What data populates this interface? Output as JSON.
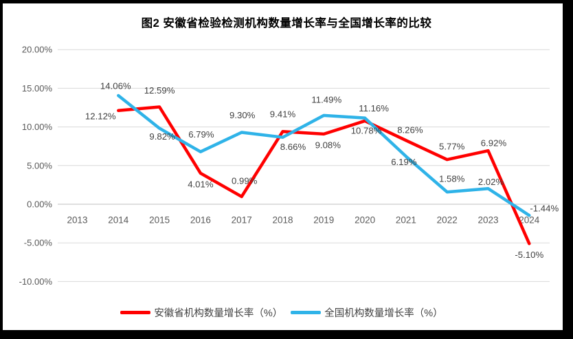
{
  "frame": {
    "border_color": "#000000",
    "background": "#ffffff"
  },
  "chart_data": {
    "type": "line",
    "title": "图2 安徽省检验检测机构数量增长率与全国增长率的比较",
    "categories": [
      "2013",
      "2014",
      "2015",
      "2016",
      "2017",
      "2018",
      "2019",
      "2020",
      "2021",
      "2022",
      "2023",
      "2024"
    ],
    "series": [
      {
        "id": "anhui",
        "name": "安徽省机构数量增长率（%）",
        "color": "#ff0000",
        "values": [
          null,
          12.12,
          12.59,
          4.01,
          0.99,
          9.41,
          9.08,
          10.78,
          8.26,
          5.77,
          6.92,
          -5.1
        ],
        "labels": [
          "",
          "12.12%",
          "12.59%",
          "4.01%",
          "0.99%",
          "9.41%",
          "9.08%",
          "10.78%",
          "8.26%",
          "5.77%",
          "6.92%",
          "-5.10%"
        ],
        "label_offsets": [
          null,
          [
            -26,
            8
          ],
          [
            0,
            -24
          ],
          [
            0,
            16
          ],
          [
            4,
            -23
          ],
          [
            0,
            -25
          ],
          [
            6,
            16
          ],
          [
            2,
            14
          ],
          [
            6,
            -15
          ],
          [
            7,
            -19
          ],
          [
            8,
            -11
          ],
          [
            0,
            16
          ]
        ]
      },
      {
        "id": "national",
        "name": "全国机构数量增长率（%）",
        "color": "#2fb3e8",
        "values": [
          null,
          14.06,
          9.82,
          6.79,
          9.3,
          8.66,
          11.49,
          11.16,
          6.19,
          1.58,
          2.02,
          -1.44
        ],
        "labels": [
          "",
          "14.06%",
          "9.82%",
          "6.79%",
          "9.30%",
          "8.66%",
          "11.49%",
          "11.16%",
          "6.19%",
          "1.58%",
          "2.02%",
          "-1.44%"
        ],
        "label_offsets": [
          null,
          [
            -4,
            -14
          ],
          [
            4,
            12
          ],
          [
            1,
            -25
          ],
          [
            1,
            -25
          ],
          [
            15,
            14
          ],
          [
            4,
            -23
          ],
          [
            13,
            -14
          ],
          [
            -3,
            8
          ],
          [
            7,
            -19
          ],
          [
            4,
            -10
          ],
          [
            22,
            -10
          ]
        ]
      }
    ],
    "y_axis": {
      "ticks": [
        "20.00%",
        "15.00%",
        "10.00%",
        "5.00%",
        "0.00%",
        "-5.00%",
        "-10.00%"
      ],
      "tick_values": [
        20,
        15,
        10,
        5,
        0,
        -5,
        -10
      ],
      "min": -10,
      "max": 20,
      "unit": "%"
    },
    "grid": true,
    "legend_position": "bottom",
    "data_labels": true,
    "colors": {
      "gridline": "#d9d9d9",
      "axis_line": "#bfbfbf",
      "axis_label": "#595959",
      "data_label": "#404040",
      "legend_label": "#404040",
      "title": "#000000"
    }
  }
}
